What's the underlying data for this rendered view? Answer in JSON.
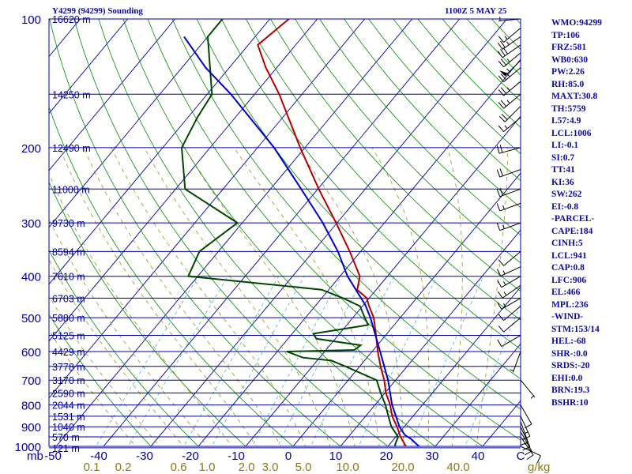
{
  "header": {
    "station": "Y4299 (94299) Sounding",
    "time": "1100Z  5 MAY 25"
  },
  "indices": [
    "WMO:94299",
    "TP:106",
    "FRZ:581",
    "WB0:630",
    "PW:2.26",
    "RH:85.0",
    "MAXT:30.8",
    "TH:5759",
    "L57:4.9",
    "LCL:1006",
    "LI:-0.1",
    "SI:0.7",
    "TT:41",
    "KI:36",
    "SW:262",
    "EI:-0.8",
    "-PARCEL-",
    "CAPE:184",
    "CINH:5",
    "LCL:941",
    "CAP:0.8",
    "LFC:906",
    "EL:466",
    "MPL:236",
    "-WIND-",
    "STM:153/14",
    "HEL:-68",
    "SHR-:0.0",
    "SRDS:-20",
    "EHI:0.0",
    "BRN:19.3",
    "BSHR:10"
  ],
  "colors": {
    "isobar": "#0000a0",
    "isotherm": "#0000a0",
    "dry_adiabat": "#008c00",
    "moist_adiabat": "#96961e",
    "mixing_ratio": "#46b4d2",
    "temperature": "#b40000",
    "dewpoint": "#004600",
    "parcel": "#0000c8",
    "wind_barb": "#000000",
    "mixing_label": "#8c7814"
  },
  "chart_data": {
    "type": "skew-t",
    "x_axis_label": "mb",
    "mixing_ratio_unit": "g/kg",
    "pressure_levels": [
      1000,
      900,
      800,
      700,
      600,
      500,
      400,
      300,
      200,
      100
    ],
    "temperature_ticks": [
      -50,
      -40,
      -30,
      -20,
      -10,
      0,
      10,
      20,
      30,
      40,
      "C"
    ],
    "mixing_ratio_ticks": [
      "0.1",
      "0.2",
      "0.6",
      "1.0",
      "2.0",
      "3.0",
      "5.0",
      "10.0",
      "20.0",
      "40.0"
    ],
    "height_labels": [
      {
        "p": 1008,
        "h": "121 m"
      },
      {
        "p": 950,
        "h": "570 m"
      },
      {
        "p": 900,
        "h": "1040 m"
      },
      {
        "p": 850,
        "h": "1531 m"
      },
      {
        "p": 800,
        "h": "2044 m"
      },
      {
        "p": 750,
        "h": "2590 m"
      },
      {
        "p": 700,
        "h": "3170 m"
      },
      {
        "p": 650,
        "h": "3778 m"
      },
      {
        "p": 600,
        "h": "4429 m"
      },
      {
        "p": 550,
        "h": "5125 m"
      },
      {
        "p": 500,
        "h": "5880 m"
      },
      {
        "p": 450,
        "h": "6703 m"
      },
      {
        "p": 400,
        "h": "7610 m"
      },
      {
        "p": 350,
        "h": "8594 m"
      },
      {
        "p": 300,
        "h": "9730 m"
      },
      {
        "p": 250,
        "h": "11000 m"
      },
      {
        "p": 200,
        "h": "12490 m"
      },
      {
        "p": 150,
        "h": "14250 m"
      },
      {
        "p": 100,
        "h": "16620 m"
      }
    ],
    "temperature": [
      [
        1008,
        24.5
      ],
      [
        1000,
        23.8
      ],
      [
        950,
        21.0
      ],
      [
        900,
        18.5
      ],
      [
        850,
        15.6
      ],
      [
        800,
        13.2
      ],
      [
        750,
        10.2
      ],
      [
        700,
        7.6
      ],
      [
        650,
        4.4
      ],
      [
        600,
        1.2
      ],
      [
        550,
        -2.0
      ],
      [
        500,
        -5.6
      ],
      [
        470,
        -8.6
      ],
      [
        450,
        -10.5
      ],
      [
        430,
        -14.0
      ],
      [
        400,
        -15.8
      ],
      [
        350,
        -22.3
      ],
      [
        300,
        -30.2
      ],
      [
        250,
        -39.8
      ],
      [
        200,
        -51.0
      ],
      [
        150,
        -64.8
      ],
      [
        130,
        -72.3
      ],
      [
        115,
        -78.0
      ],
      [
        100,
        -76.0
      ]
    ],
    "dewpoint": [
      [
        1008,
        21.8
      ],
      [
        990,
        21.2
      ],
      [
        950,
        20.5
      ],
      [
        900,
        17.3
      ],
      [
        850,
        14.8
      ],
      [
        800,
        12.2
      ],
      [
        750,
        9.1
      ],
      [
        700,
        6.0
      ],
      [
        650,
        -3.0
      ],
      [
        630,
        -7.0
      ],
      [
        620,
        -13.5
      ],
      [
        600,
        -18.0
      ],
      [
        595,
        -4.0
      ],
      [
        580,
        -3.5
      ],
      [
        560,
        -14.0
      ],
      [
        545,
        -15.5
      ],
      [
        520,
        -5.5
      ],
      [
        500,
        -7.5
      ],
      [
        470,
        -10.5
      ],
      [
        450,
        -15.5
      ],
      [
        430,
        -21.5
      ],
      [
        400,
        -52.0
      ],
      [
        350,
        -54.0
      ],
      [
        300,
        -51.0
      ],
      [
        250,
        -68.0
      ],
      [
        200,
        -76.0
      ],
      [
        170,
        -78.0
      ],
      [
        150,
        -79.0
      ],
      [
        110,
        -90.0
      ],
      [
        100,
        -90.0
      ]
    ],
    "parcel": [
      [
        1008,
        27.2
      ],
      [
        990,
        25.8
      ],
      [
        960,
        23.5
      ],
      [
        941,
        21.6
      ],
      [
        900,
        19.0
      ],
      [
        850,
        16.4
      ],
      [
        800,
        13.6
      ],
      [
        700,
        8.4
      ],
      [
        600,
        1.7
      ],
      [
        500,
        -6.3
      ],
      [
        466,
        -9.7
      ],
      [
        400,
        -18.4
      ],
      [
        350,
        -24.8
      ],
      [
        300,
        -33.0
      ],
      [
        250,
        -43.5
      ],
      [
        200,
        -56.5
      ],
      [
        150,
        -75.0
      ],
      [
        130,
        -85.0
      ],
      [
        110,
        -95.0
      ]
    ],
    "winds": [
      {
        "p": 1000,
        "dir": 115,
        "spd": 10
      },
      {
        "p": 950,
        "dir": 145,
        "spd": 10
      },
      {
        "p": 925,
        "dir": 150,
        "spd": 15
      },
      {
        "p": 900,
        "dir": 155,
        "spd": 15
      },
      {
        "p": 875,
        "dir": 160,
        "spd": 15
      },
      {
        "p": 850,
        "dir": 155,
        "spd": 15
      },
      {
        "p": 800,
        "dir": 150,
        "spd": 10
      },
      {
        "p": 700,
        "dir": 140,
        "spd": 5
      },
      {
        "p": 600,
        "dir": 200,
        "spd": 5
      },
      {
        "p": 550,
        "dir": 240,
        "spd": 10
      },
      {
        "p": 500,
        "dir": 230,
        "spd": 10
      },
      {
        "p": 470,
        "dir": 230,
        "spd": 10
      },
      {
        "p": 450,
        "dir": 240,
        "spd": 15
      },
      {
        "p": 420,
        "dir": 235,
        "spd": 15
      },
      {
        "p": 400,
        "dir": 240,
        "spd": 15
      },
      {
        "p": 380,
        "dir": 245,
        "spd": 15
      },
      {
        "p": 350,
        "dir": 230,
        "spd": 10
      },
      {
        "p": 300,
        "dir": 250,
        "spd": 15
      },
      {
        "p": 270,
        "dir": 250,
        "spd": 15
      },
      {
        "p": 250,
        "dir": 250,
        "spd": 20
      },
      {
        "p": 225,
        "dir": 250,
        "spd": 20
      },
      {
        "p": 200,
        "dir": 255,
        "spd": 20
      },
      {
        "p": 170,
        "dir": 230,
        "spd": 15
      },
      {
        "p": 160,
        "dir": 225,
        "spd": 20
      },
      {
        "p": 150,
        "dir": 230,
        "spd": 25
      },
      {
        "p": 140,
        "dir": 230,
        "spd": 25
      },
      {
        "p": 130,
        "dir": 230,
        "spd": 25
      },
      {
        "p": 125,
        "dir": 225,
        "spd": 55
      },
      {
        "p": 120,
        "dir": 230,
        "spd": 25
      },
      {
        "p": 115,
        "dir": 235,
        "spd": 30
      },
      {
        "p": 110,
        "dir": 235,
        "spd": 25
      },
      {
        "p": 105,
        "dir": 230,
        "spd": 15
      },
      {
        "p": 100,
        "dir": 265,
        "spd": 5
      }
    ]
  }
}
